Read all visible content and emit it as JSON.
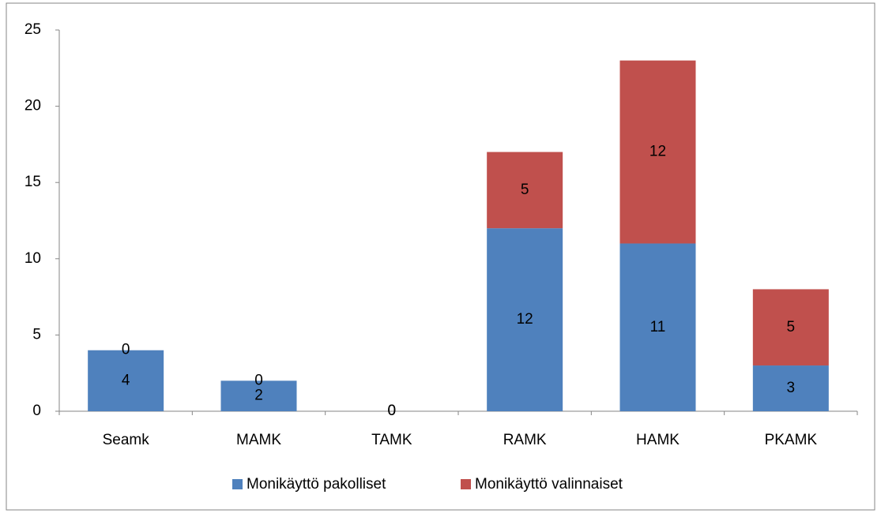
{
  "chart_data": {
    "type": "stacked_bar",
    "categories": [
      "Seamk",
      "MAMK",
      "TAMK",
      "RAMK",
      "HAMK",
      "PKAMK"
    ],
    "series": [
      {
        "name": "Monikäyttö pakolliset",
        "color": "#4f81bd",
        "values": [
          4,
          2,
          0,
          12,
          11,
          3
        ]
      },
      {
        "name": "Monikäyttö valinnaiset",
        "color": "#c0504d",
        "values": [
          0,
          0,
          0,
          5,
          12,
          5
        ]
      }
    ],
    "ylim": [
      0,
      25
    ],
    "yticks": [
      0,
      5,
      10,
      15,
      20,
      25
    ],
    "grid": false,
    "legend": "bottom"
  }
}
